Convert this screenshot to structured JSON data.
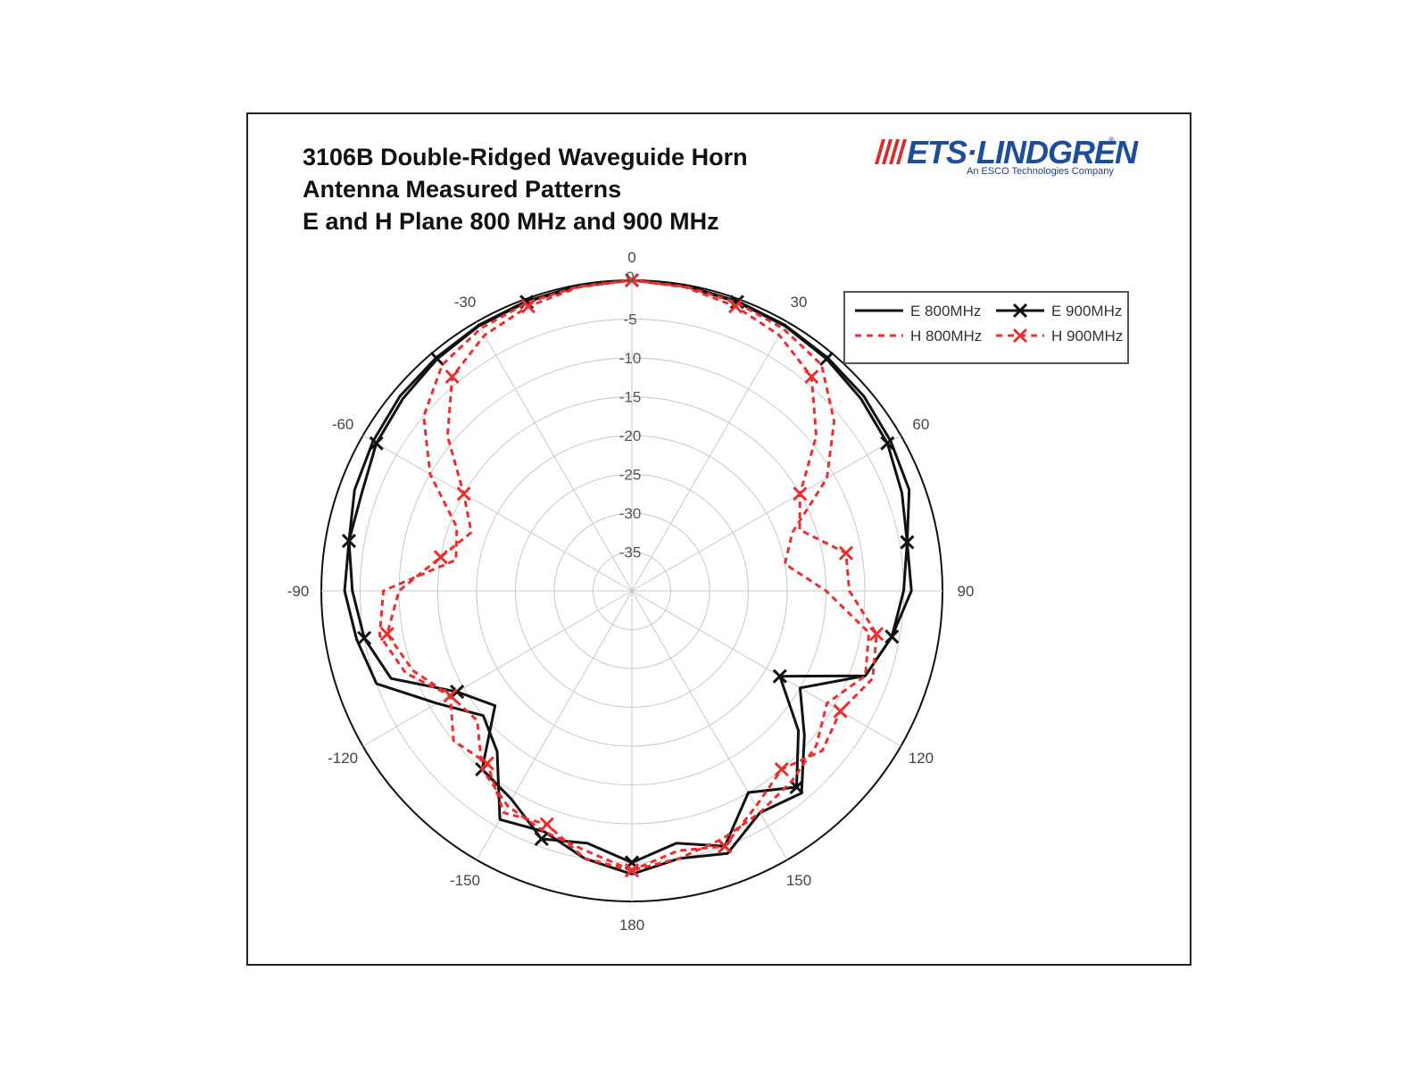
{
  "title_lines": [
    "3106B Double-Ridged Waveguide Horn",
    "Antenna Measured Patterns",
    "E and H Plane 800 MHz and 900 MHz"
  ],
  "logo": {
    "name": "ETS·LINDGREN",
    "tagline": "An ESCO Technologies Company",
    "color": "#1f4e99",
    "stripe_color": "#d32f2f"
  },
  "chart_data": {
    "type": "polar",
    "title": "3106B Double-Ridged Waveguide Horn Antenna Measured Patterns E and H Plane 800 MHz and 900 MHz",
    "angle_unit": "degrees",
    "angle_zero": "top",
    "angle_direction": "clockwise",
    "angle_ticks": [
      0,
      30,
      60,
      90,
      120,
      150,
      180,
      -150,
      -120,
      -90,
      -60,
      -30
    ],
    "radial_ticks": [
      0,
      -5,
      -10,
      -15,
      -20,
      -25,
      -30,
      -35
    ],
    "r_range_db": [
      -40,
      0
    ],
    "grid": true,
    "legend_position": "top-right",
    "series": [
      {
        "name": "E 800MHz",
        "color": "#111111",
        "style": "solid",
        "marker": "none",
        "angles": [
          -180,
          -170,
          -160,
          -150,
          -140,
          -130,
          -120,
          -110,
          -100,
          -90,
          -80,
          -70,
          -60,
          -50,
          -40,
          -30,
          -20,
          -10,
          0,
          10,
          20,
          30,
          40,
          50,
          60,
          70,
          80,
          90,
          100,
          110,
          120,
          130,
          140,
          150,
          160,
          170,
          180
        ],
        "values": [
          -3.5,
          -5,
          -7,
          -6,
          -13,
          -15,
          -11,
          -5,
          -4,
          -3,
          -3,
          -2,
          -1.5,
          -1,
          -0.8,
          -0.5,
          -0.3,
          -0.1,
          0,
          -0.1,
          -0.3,
          -0.5,
          -0.8,
          -1,
          -1.5,
          -2,
          -4,
          -5,
          -6,
          -8,
          -15,
          -11,
          -6,
          -7,
          -4,
          -5,
          -3.5
        ]
      },
      {
        "name": "E 900MHz",
        "color": "#111111",
        "style": "solid",
        "marker": "x",
        "angles": [
          -180,
          -170,
          -160,
          -150,
          -140,
          -130,
          -120,
          -110,
          -100,
          -90,
          -80,
          -70,
          -60,
          -50,
          -40,
          -30,
          -20,
          -10,
          0,
          10,
          20,
          30,
          40,
          50,
          60,
          70,
          80,
          90,
          100,
          110,
          120,
          130,
          140,
          150,
          160,
          170,
          180
        ],
        "values": [
          -5,
          -7,
          -6,
          -9,
          -10,
          -17,
          -14,
          -7,
          -5,
          -4,
          -3,
          -3,
          -2,
          -1.5,
          -1,
          -0.6,
          -0.4,
          -0.2,
          0,
          -0.2,
          -0.4,
          -0.6,
          -1,
          -1.5,
          -2,
          -3,
          -4,
          -4,
          -6,
          -8,
          -18,
          -12,
          -7,
          -10,
          -5,
          -7,
          -5
        ]
      },
      {
        "name": "H 800MHz",
        "color": "#e8312f",
        "style": "dashed",
        "marker": "none",
        "angles": [
          -180,
          -170,
          -160,
          -150,
          -140,
          -130,
          -120,
          -110,
          -100,
          -90,
          -80,
          -70,
          -60,
          -50,
          -40,
          -30,
          -20,
          -10,
          0,
          10,
          20,
          30,
          40,
          50,
          60,
          70,
          80,
          90,
          100,
          110,
          120,
          130,
          140,
          150,
          160,
          170,
          180
        ],
        "values": [
          -4,
          -6,
          -7,
          -8,
          -10,
          -14,
          -13,
          -9,
          -7,
          -8,
          -17,
          -16,
          -10,
          -5,
          -2,
          -1,
          -0.5,
          -0.2,
          0,
          -0.2,
          -0.5,
          -1,
          -2,
          -6,
          -11,
          -18,
          -20,
          -15,
          -9,
          -8,
          -11,
          -9,
          -8,
          -7,
          -6,
          -5,
          -4
        ]
      },
      {
        "name": "H 900MHz",
        "color": "#e8312f",
        "style": "dashed",
        "marker": "x",
        "angles": [
          -180,
          -170,
          -160,
          -150,
          -140,
          -130,
          -120,
          -110,
          -100,
          -90,
          -80,
          -70,
          -60,
          -50,
          -40,
          -30,
          -20,
          -10,
          0,
          10,
          20,
          30,
          40,
          50,
          60,
          70,
          80,
          90,
          100,
          110,
          120,
          130,
          140,
          150,
          160,
          170,
          180
        ],
        "values": [
          -4,
          -5,
          -8,
          -7,
          -11,
          -10,
          -13,
          -10,
          -8,
          -10,
          -15,
          -18,
          -15,
          -9,
          -4,
          -2,
          -1,
          -0.3,
          0,
          -0.3,
          -1,
          -2,
          -4,
          -9,
          -15,
          -17,
          -12,
          -12,
          -8,
          -7,
          -9,
          -8,
          -10,
          -8,
          -5,
          -6,
          -4
        ]
      }
    ]
  }
}
